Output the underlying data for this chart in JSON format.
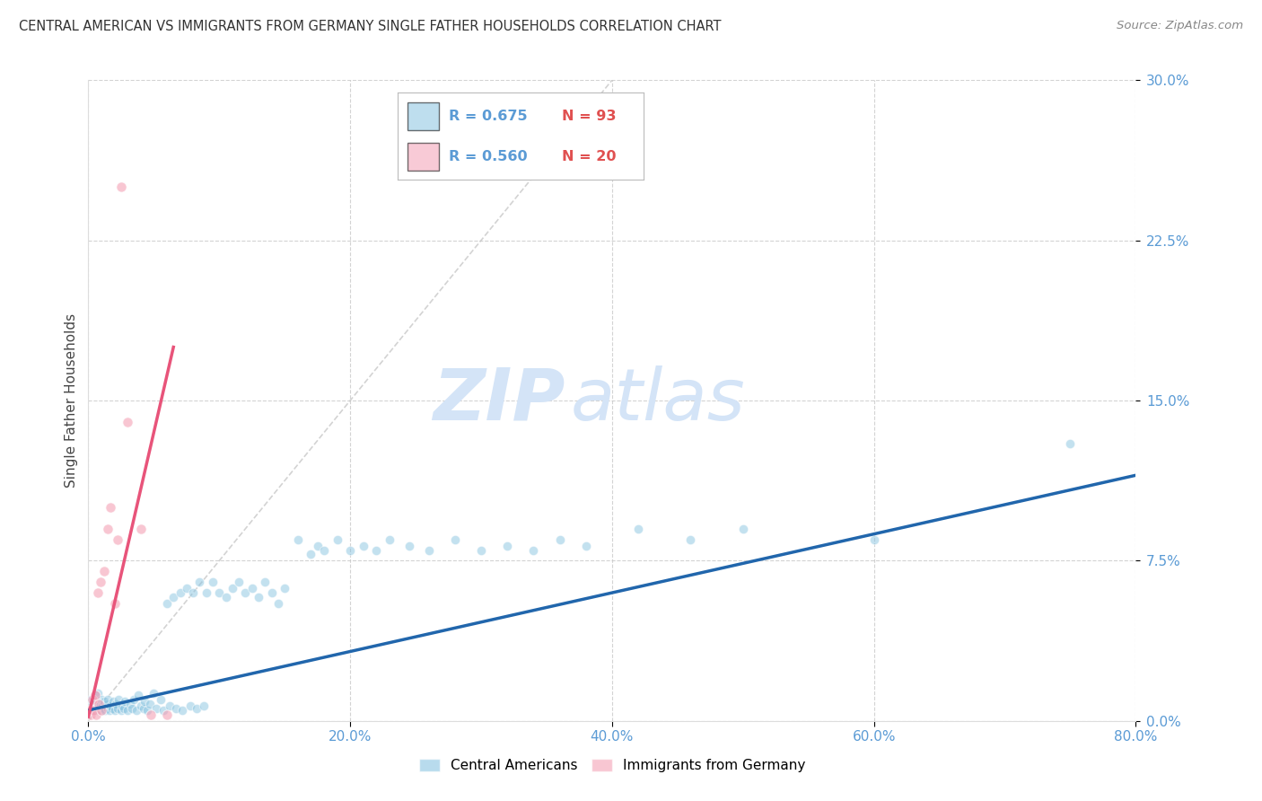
{
  "title": "CENTRAL AMERICAN VS IMMIGRANTS FROM GERMANY SINGLE FATHER HOUSEHOLDS CORRELATION CHART",
  "source": "Source: ZipAtlas.com",
  "ylabel": "Single Father Households",
  "xlim": [
    0.0,
    0.8
  ],
  "ylim": [
    0.0,
    0.3
  ],
  "ytick_values": [
    0.0,
    0.075,
    0.15,
    0.225,
    0.3
  ],
  "xtick_values": [
    0.0,
    0.2,
    0.4,
    0.6,
    0.8
  ],
  "background_color": "#ffffff",
  "grid_color": "#c8c8c8",
  "watermark_zip": "ZIP",
  "watermark_atlas": "atlas",
  "watermark_color": "#d4e4f7",
  "blue_color": "#89c4e1",
  "pink_color": "#f4a0b5",
  "blue_line_color": "#2166ac",
  "pink_line_color": "#e8547a",
  "dashed_line_color": "#c8c8c8",
  "tick_color": "#5b9bd5",
  "legend_R_color": "#5b9bd5",
  "legend_N_color": "#e05050",
  "legend": {
    "blue_R": "R = 0.675",
    "blue_N": "N = 93",
    "pink_R": "R = 0.560",
    "pink_N": "N = 20",
    "blue_label": "Central Americans",
    "pink_label": "Immigrants from Germany"
  },
  "blue_x": [
    0.002,
    0.003,
    0.004,
    0.005,
    0.005,
    0.006,
    0.007,
    0.007,
    0.008,
    0.009,
    0.01,
    0.01,
    0.011,
    0.012,
    0.012,
    0.013,
    0.014,
    0.015,
    0.015,
    0.016,
    0.017,
    0.018,
    0.019,
    0.02,
    0.021,
    0.022,
    0.023,
    0.025,
    0.026,
    0.027,
    0.028,
    0.03,
    0.032,
    0.033,
    0.035,
    0.037,
    0.038,
    0.04,
    0.042,
    0.043,
    0.045,
    0.047,
    0.05,
    0.052,
    0.055,
    0.057,
    0.06,
    0.062,
    0.065,
    0.067,
    0.07,
    0.072,
    0.075,
    0.078,
    0.08,
    0.083,
    0.085,
    0.088,
    0.09,
    0.095,
    0.1,
    0.105,
    0.11,
    0.115,
    0.12,
    0.125,
    0.13,
    0.135,
    0.14,
    0.145,
    0.15,
    0.16,
    0.17,
    0.175,
    0.18,
    0.19,
    0.2,
    0.21,
    0.22,
    0.23,
    0.245,
    0.26,
    0.28,
    0.3,
    0.32,
    0.34,
    0.36,
    0.38,
    0.42,
    0.46,
    0.5,
    0.6,
    0.75
  ],
  "blue_y": [
    0.01,
    0.008,
    0.005,
    0.006,
    0.012,
    0.005,
    0.007,
    0.013,
    0.006,
    0.008,
    0.005,
    0.01,
    0.007,
    0.006,
    0.009,
    0.005,
    0.008,
    0.006,
    0.01,
    0.005,
    0.007,
    0.006,
    0.009,
    0.005,
    0.008,
    0.006,
    0.01,
    0.005,
    0.007,
    0.006,
    0.009,
    0.005,
    0.008,
    0.006,
    0.01,
    0.005,
    0.012,
    0.007,
    0.006,
    0.009,
    0.005,
    0.008,
    0.013,
    0.006,
    0.01,
    0.005,
    0.055,
    0.007,
    0.058,
    0.006,
    0.06,
    0.005,
    0.062,
    0.007,
    0.06,
    0.006,
    0.065,
    0.007,
    0.06,
    0.065,
    0.06,
    0.058,
    0.062,
    0.065,
    0.06,
    0.062,
    0.058,
    0.065,
    0.06,
    0.055,
    0.062,
    0.085,
    0.078,
    0.082,
    0.08,
    0.085,
    0.08,
    0.082,
    0.08,
    0.085,
    0.082,
    0.08,
    0.085,
    0.08,
    0.082,
    0.08,
    0.085,
    0.082,
    0.09,
    0.085,
    0.09,
    0.085,
    0.13
  ],
  "pink_x": [
    0.001,
    0.002,
    0.003,
    0.004,
    0.005,
    0.006,
    0.007,
    0.008,
    0.009,
    0.01,
    0.012,
    0.015,
    0.017,
    0.02,
    0.022,
    0.025,
    0.03,
    0.04,
    0.048,
    0.06
  ],
  "pink_y": [
    0.005,
    0.003,
    0.01,
    0.005,
    0.012,
    0.003,
    0.06,
    0.008,
    0.065,
    0.005,
    0.07,
    0.09,
    0.1,
    0.055,
    0.085,
    0.25,
    0.14,
    0.09,
    0.003,
    0.003
  ],
  "blue_trend_x": [
    0.0,
    0.8
  ],
  "blue_trend_y": [
    0.005,
    0.115
  ],
  "pink_trend_x": [
    0.0,
    0.065
  ],
  "pink_trend_y": [
    0.002,
    0.175
  ],
  "dashed_line_x": [
    0.0,
    0.4
  ],
  "dashed_line_y": [
    0.0,
    0.3
  ]
}
